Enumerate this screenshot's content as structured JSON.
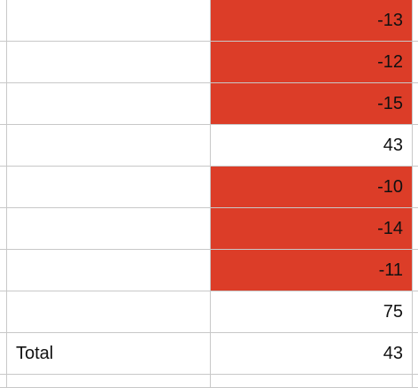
{
  "spreadsheet": {
    "highlight_color": "#dc3d28",
    "rows": [
      {
        "label": "",
        "value": "-13",
        "negative": true
      },
      {
        "label": "",
        "value": "-12",
        "negative": true
      },
      {
        "label": "",
        "value": "-15",
        "negative": true
      },
      {
        "label": "",
        "value": "43",
        "negative": false
      },
      {
        "label": "",
        "value": "-10",
        "negative": true
      },
      {
        "label": "",
        "value": "-14",
        "negative": true
      },
      {
        "label": "",
        "value": "-11",
        "negative": true
      },
      {
        "label": "",
        "value": "75",
        "negative": false
      },
      {
        "label": "Total",
        "value": "43",
        "negative": false
      }
    ]
  }
}
